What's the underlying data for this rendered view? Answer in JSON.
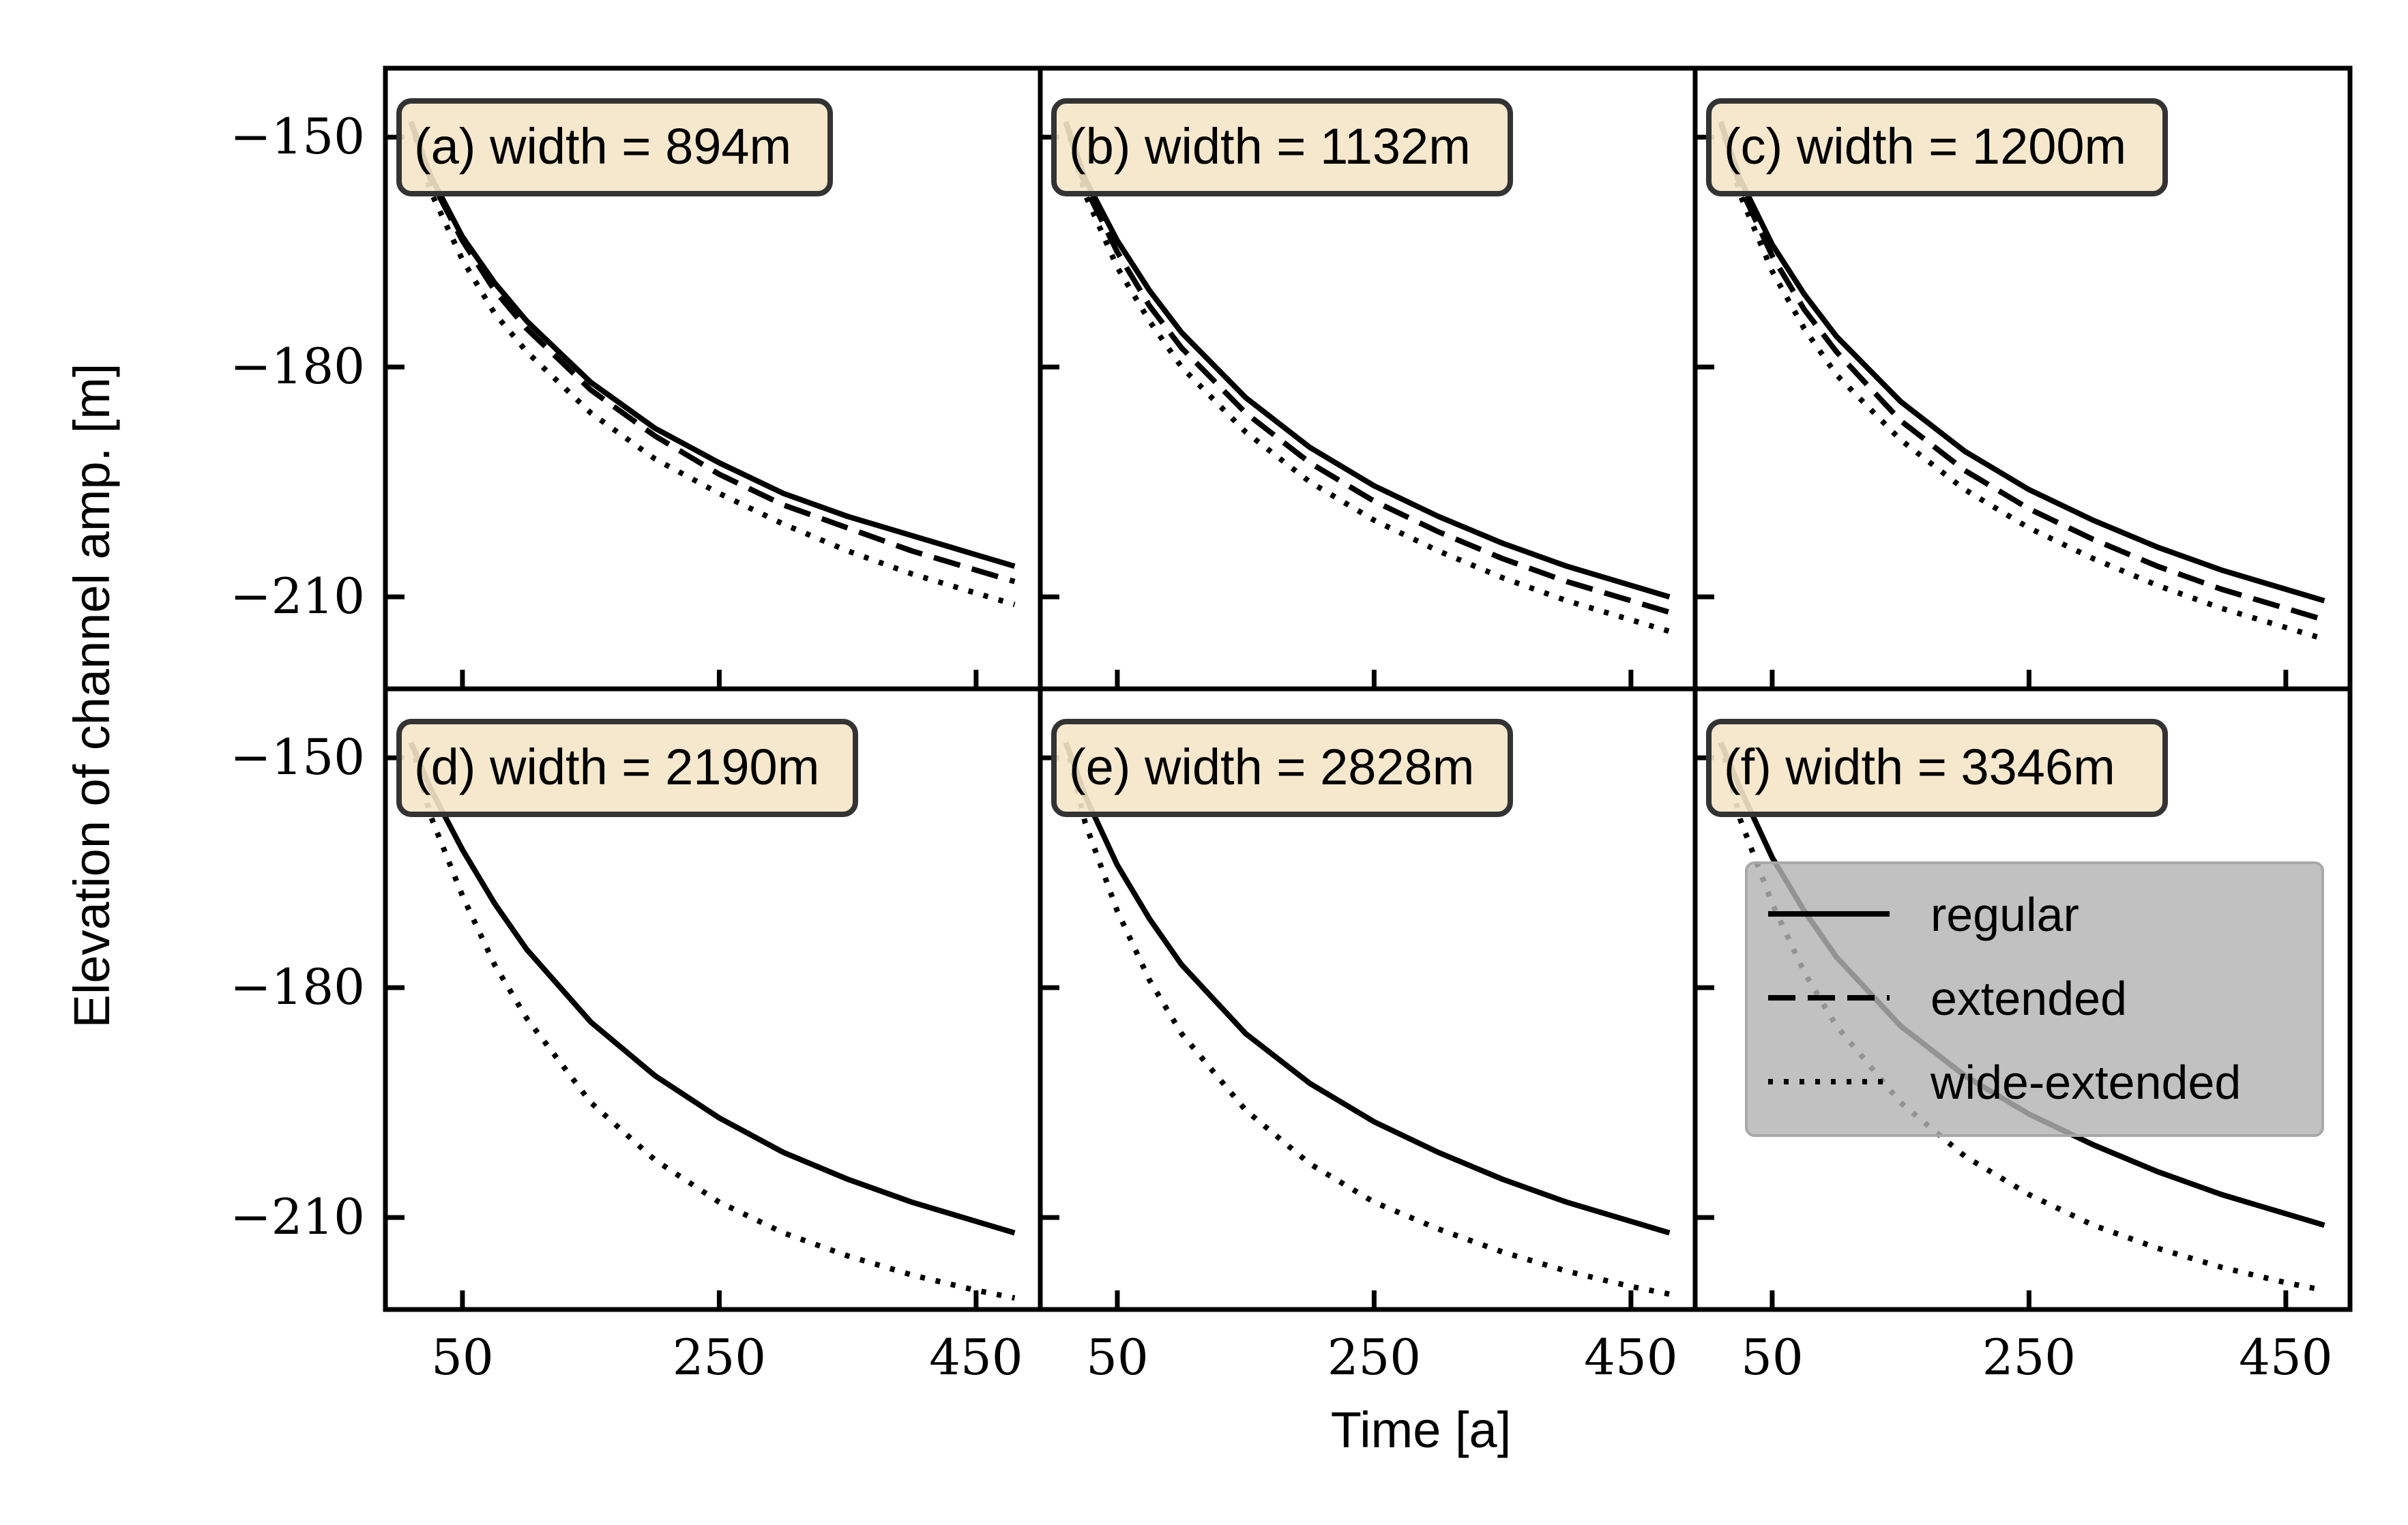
{
  "chart_data": {
    "type": "line",
    "layout": "2x3 small multiples",
    "xlabel": "Time [a]",
    "ylabel": "Elevation of channel amp. [m]",
    "xlim": [
      -10,
      500
    ],
    "ylim": [
      -222,
      -141
    ],
    "xticks": [
      50,
      250,
      450
    ],
    "yticks": [
      -150,
      -180,
      -210
    ],
    "ytick_labels": [
      "−150",
      "−180",
      "−210"
    ],
    "xtick_labels": [
      "50",
      "250",
      "450"
    ],
    "x": [
      10,
      25,
      50,
      75,
      100,
      150,
      200,
      250,
      300,
      350,
      400,
      450,
      480
    ],
    "legend": {
      "location": "center-right of panel f",
      "entries": [
        {
          "label": "regular",
          "style": "solid"
        },
        {
          "label": "extended",
          "style": "dashed"
        },
        {
          "label": "wide-extended",
          "style": "dotted"
        }
      ]
    },
    "panels": [
      {
        "label": "(a) width = 894m",
        "series": [
          {
            "name": "regular",
            "style": "solid",
            "values": [
              -148,
              -155,
              -163,
              -169,
              -174,
              -182,
              -188,
              -192.5,
              -196.5,
              -199.5,
              -202,
              -204.5,
              -206
            ]
          },
          {
            "name": "extended",
            "style": "dashed",
            "values": [
              -148,
              -155.5,
              -163.5,
              -170,
              -175,
              -183,
              -189,
              -194,
              -198,
              -201,
              -204,
              -206.5,
              -208
            ]
          },
          {
            "name": "wide-extended",
            "style": "dotted",
            "values": [
              -148,
              -157,
              -166,
              -173,
              -178,
              -186,
              -192,
              -196.5,
              -200.5,
              -204,
              -207,
              -209.5,
              -211
            ]
          }
        ]
      },
      {
        "label": "(b) width = 1132m",
        "series": [
          {
            "name": "regular",
            "style": "solid",
            "values": [
              -148,
              -155.5,
              -163.5,
              -170,
              -175.5,
              -184,
              -190.5,
              -195.5,
              -199.5,
              -203,
              -206,
              -208.5,
              -210
            ]
          },
          {
            "name": "extended",
            "style": "dashed",
            "values": [
              -148,
              -156.5,
              -165,
              -172,
              -177.5,
              -186,
              -192.5,
              -197.5,
              -201.5,
              -205,
              -208,
              -210.5,
              -212
            ]
          },
          {
            "name": "wide-extended",
            "style": "dotted",
            "values": [
              -148,
              -157.5,
              -167,
              -174,
              -180,
              -188.5,
              -195,
              -200,
              -204,
              -207.5,
              -210.5,
              -213,
              -214.5
            ]
          }
        ]
      },
      {
        "label": "(c) width = 1200m",
        "series": [
          {
            "name": "regular",
            "style": "solid",
            "values": [
              -148,
              -155.5,
              -164,
              -170.5,
              -176,
              -184.5,
              -191,
              -196,
              -200,
              -203.5,
              -206.5,
              -209,
              -210.5
            ]
          },
          {
            "name": "extended",
            "style": "dashed",
            "values": [
              -148,
              -156.5,
              -165.5,
              -172.5,
              -178,
              -187,
              -193.5,
              -198.5,
              -202.5,
              -206,
              -209,
              -211.5,
              -213
            ]
          },
          {
            "name": "wide-extended",
            "style": "dotted",
            "values": [
              -148,
              -157.5,
              -167.5,
              -175,
              -181,
              -189.5,
              -196,
              -201,
              -205,
              -208.5,
              -211.5,
              -214,
              -215.5
            ]
          }
        ]
      },
      {
        "label": "(d) width = 2190m",
        "series": [
          {
            "name": "regular",
            "style": "solid",
            "values": [
              -148,
              -154,
              -162,
              -169,
              -175,
              -184.5,
              -191.5,
              -197,
              -201.5,
              -205,
              -208,
              -210.5,
              -212
            ]
          },
          {
            "name": "wide-extended",
            "style": "dotted",
            "values": [
              -148,
              -157.5,
              -168,
              -177,
              -184,
              -195,
              -202.5,
              -208,
              -212,
              -215,
              -217.5,
              -219.5,
              -220.5
            ]
          }
        ]
      },
      {
        "label": "(e) width = 2828m",
        "series": [
          {
            "name": "regular",
            "style": "solid",
            "values": [
              -148,
              -155,
              -164,
              -171,
              -177,
              -186,
              -192.5,
              -197.5,
              -201.5,
              -205,
              -208,
              -210.5,
              -212
            ]
          },
          {
            "name": "wide-extended",
            "style": "dotted",
            "values": [
              -148,
              -158.5,
              -170,
              -179,
              -186,
              -196,
              -203,
              -208,
              -211.5,
              -214.5,
              -217,
              -219,
              -220
            ]
          }
        ]
      },
      {
        "label": "(f) width = 3346m",
        "series": [
          {
            "name": "regular",
            "style": "solid",
            "values": [
              -148,
              -154,
              -163,
              -170,
              -176,
              -185,
              -191.5,
              -196.5,
              -200.5,
              -204,
              -207,
              -209.5,
              -211
            ]
          },
          {
            "name": "wide-extended",
            "style": "dotted",
            "values": [
              -148,
              -158,
              -169,
              -178,
              -185,
              -195,
              -202,
              -207,
              -211,
              -214,
              -216.5,
              -218.5,
              -219.5
            ]
          }
        ]
      }
    ]
  }
}
